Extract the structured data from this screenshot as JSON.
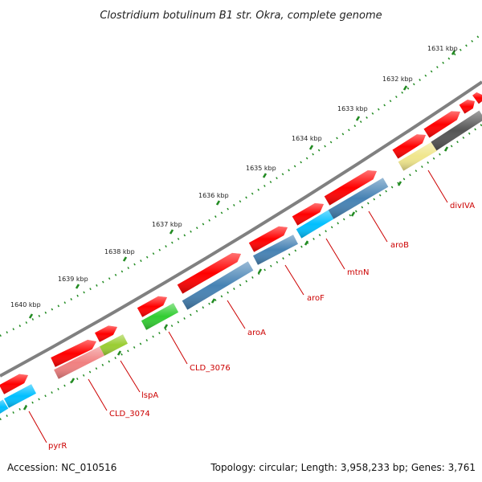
{
  "title": "Clostridium botulinum B1 str. Okra, complete genome",
  "footer": {
    "accession": "Accession: NC_010516",
    "topology": "Topology: circular; Length: 3,958,233 bp; Genes: 3,761"
  },
  "ruler": {
    "ticks": [
      "1631 kbp",
      "1632 kbp",
      "1633 kbp",
      "1634 kbp",
      "1635 kbp",
      "1636 kbp",
      "1637 kbp",
      "1638 kbp",
      "1639 kbp",
      "1640 kbp"
    ]
  },
  "genes": [
    {
      "name": "divIVA",
      "color": "#f0e68c"
    },
    {
      "name": "aroB",
      "color": "#4682b4"
    },
    {
      "name": "mtnN",
      "color": "#00bfff"
    },
    {
      "name": "aroF",
      "color": "#4682b4"
    },
    {
      "name": "aroA",
      "color": "#4682b4"
    },
    {
      "name": "CLD_3076",
      "color": "#32cd32"
    },
    {
      "name": "lspA",
      "color": "#9acd32"
    },
    {
      "name": "CLD_3074",
      "color": "#f08080"
    },
    {
      "name": "pyrR",
      "color": "#00bfff"
    }
  ],
  "colors": {
    "forward_strand": "#ff0000",
    "backbone": "#808080",
    "tick": "#228b22",
    "label": "#cc0000"
  }
}
